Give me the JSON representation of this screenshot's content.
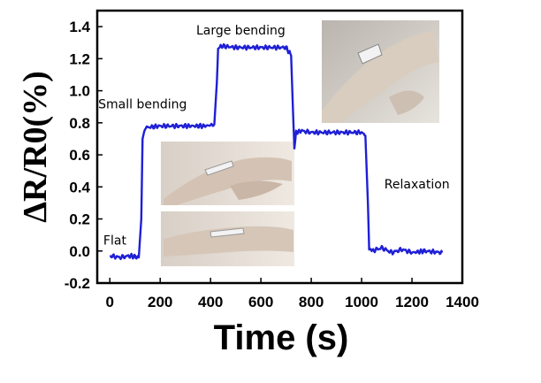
{
  "chart_data": {
    "type": "line",
    "title": "",
    "xlabel": "Time (s)",
    "ylabel": "ΔR/R0(%)",
    "xlim": [
      -50,
      1400
    ],
    "ylim": [
      -0.2,
      1.5
    ],
    "xticks": [
      0,
      200,
      400,
      600,
      800,
      1000,
      1200,
      1400
    ],
    "xtick_labels": [
      "0",
      "200",
      "400",
      "600",
      "800",
      "1000",
      "1200",
      "1400"
    ],
    "yticks": [
      -0.2,
      0.0,
      0.2,
      0.4,
      0.6,
      0.8,
      1.0,
      1.2,
      1.4
    ],
    "ytick_labels": [
      "-0.2",
      "0.0",
      "0.2",
      "0.4",
      "0.6",
      "0.8",
      "1.0",
      "1.2",
      "1.4"
    ],
    "grid": false,
    "legend": "none",
    "series_color": "#1f1fd6",
    "series": [
      {
        "x": [
          0,
          40,
          80,
          115,
          125,
          130,
          140,
          200,
          300,
          380,
          415,
          425,
          430,
          440,
          500,
          600,
          700,
          720,
          728,
          733,
          740,
          760,
          800,
          900,
          1000,
          1015,
          1025,
          1030,
          1040,
          1080,
          1120,
          1160,
          1200,
          1250,
          1320
        ],
        "y": [
          -0.03,
          -0.04,
          -0.03,
          -0.04,
          0.2,
          0.7,
          0.77,
          0.78,
          0.78,
          0.78,
          0.79,
          1.05,
          1.25,
          1.28,
          1.27,
          1.27,
          1.27,
          1.22,
          0.85,
          0.64,
          0.74,
          0.75,
          0.74,
          0.74,
          0.74,
          0.72,
          0.3,
          0.02,
          0.0,
          0.02,
          -0.01,
          0.01,
          -0.01,
          0.0,
          -0.01
        ]
      }
    ],
    "annotations": [
      {
        "text": "Flat",
        "x": 20,
        "y": 0.04
      },
      {
        "text": "Small bending",
        "x": 130,
        "y": 0.89
      },
      {
        "text": "Large bending",
        "x": 520,
        "y": 1.35
      },
      {
        "text": "Relaxation",
        "x": 1220,
        "y": 0.39
      }
    ]
  }
}
